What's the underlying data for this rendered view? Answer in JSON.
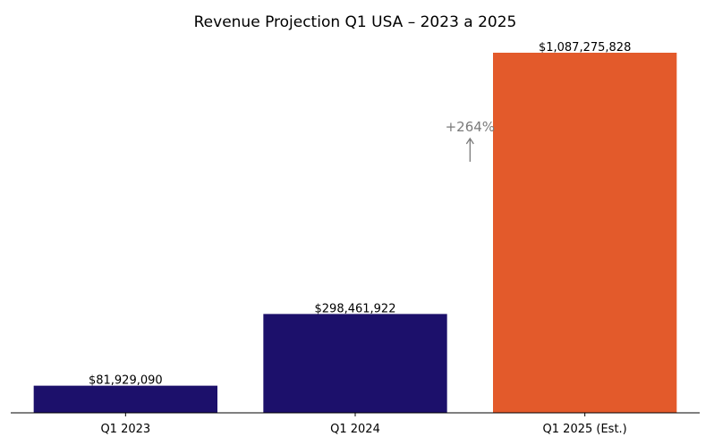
{
  "chart_data": {
    "type": "bar",
    "title": "Revenue Projection Q1 USA – 2023 a 2025",
    "xlabel": "",
    "ylabel": "",
    "categories": [
      "Q1 2023",
      "Q1 2024",
      "Q1 2025 (Est.)"
    ],
    "values": [
      81929090,
      298461922,
      1087275828
    ],
    "data_labels": [
      "$81,929,090",
      "$298,461,922",
      "$1,087,275,828"
    ],
    "bar_colors": [
      "#1c106b",
      "#1c106b",
      "#e35a2b"
    ],
    "ylim": [
      0,
      1087275828
    ],
    "grid": false,
    "y_axis_visible": false,
    "annotation": {
      "text": "+264%",
      "arrow": "up",
      "color": "#7a7a7a"
    }
  }
}
